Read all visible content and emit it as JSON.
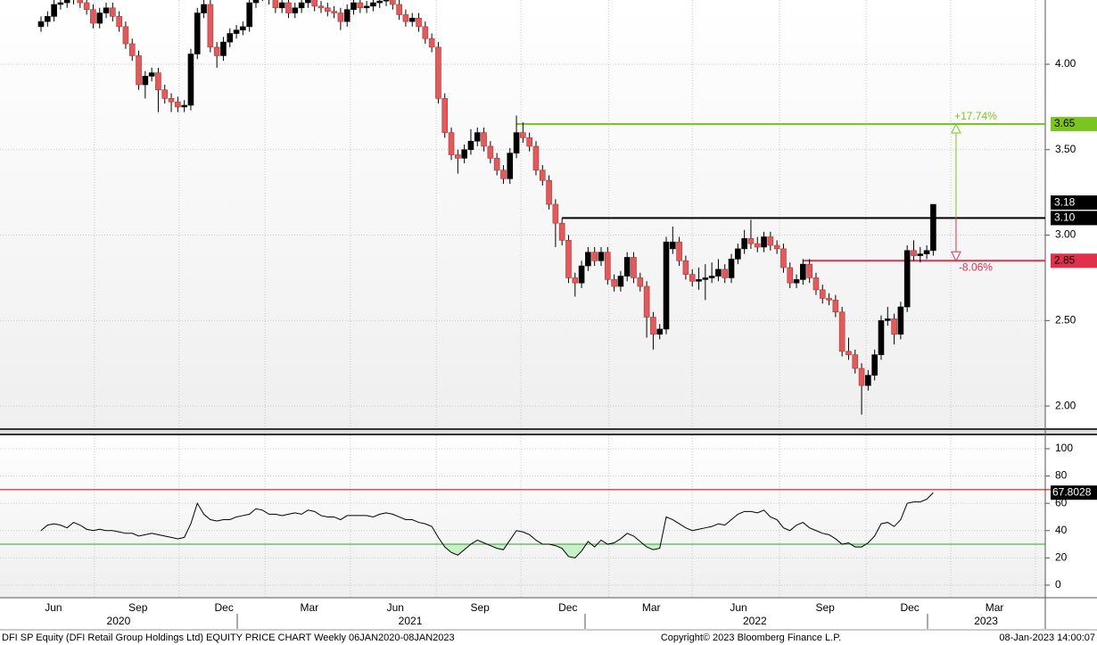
{
  "chart_data": {
    "type": "candlestick",
    "xlim": [
      -6.3,
      154.2
    ],
    "xticks": [
      {
        "value": 1.9,
        "label": "Jun"
      },
      {
        "value": 14.9,
        "label": "Sep"
      },
      {
        "value": 28.1,
        "label": "Dec"
      },
      {
        "value": 41.2,
        "label": "Mar"
      },
      {
        "value": 54.4,
        "label": "Jun"
      },
      {
        "value": 67.4,
        "label": "Sep"
      },
      {
        "value": 80.9,
        "label": "Dec"
      },
      {
        "value": 93.7,
        "label": "Mar"
      },
      {
        "value": 107.1,
        "label": "Jun"
      },
      {
        "value": 120.4,
        "label": "Sep"
      },
      {
        "value": 133.4,
        "label": "Dec"
      },
      {
        "value": 146.4,
        "label": "Mar"
      }
    ],
    "year_ticks": [
      {
        "value": 11.9,
        "label": "2020"
      },
      {
        "value": 56.7,
        "label": "2021"
      },
      {
        "value": 109.6,
        "label": "2022"
      },
      {
        "value": 145.1,
        "label": "2023"
      }
    ],
    "grid": true,
    "price": {
      "ylim": [
        1.87,
        4.376
      ],
      "yticks": [
        {
          "value": 2,
          "label": "2.00"
        },
        {
          "value": 2.5,
          "label": "2.50"
        },
        {
          "value": 3,
          "label": "3.00"
        },
        {
          "value": 3.5,
          "label": "3.50"
        },
        {
          "value": 4,
          "label": "4.00"
        }
      ],
      "up_color": "#000000",
      "down_color": "#e05c5c",
      "candles": [
        [
          4.22,
          4.28,
          4.19,
          4.25
        ],
        [
          4.25,
          4.31,
          4.22,
          4.28
        ],
        [
          4.28,
          4.38,
          4.25,
          4.35
        ],
        [
          4.35,
          4.39,
          4.32,
          4.36
        ],
        [
          4.36,
          4.43,
          4.33,
          4.4
        ],
        [
          4.4,
          4.43,
          4.35,
          4.38
        ],
        [
          4.38,
          4.41,
          4.33,
          4.36
        ],
        [
          4.36,
          4.39,
          4.29,
          4.32
        ],
        [
          4.32,
          4.35,
          4.21,
          4.24
        ],
        [
          4.24,
          4.33,
          4.21,
          4.3
        ],
        [
          4.3,
          4.36,
          4.27,
          4.33
        ],
        [
          4.33,
          4.36,
          4.25,
          4.28
        ],
        [
          4.28,
          4.31,
          4.19,
          4.22
        ],
        [
          4.22,
          4.25,
          4.09,
          4.12
        ],
        [
          4.12,
          4.15,
          4.02,
          4.05
        ],
        [
          4.05,
          4.08,
          3.85,
          3.88
        ],
        [
          3.88,
          3.96,
          3.8,
          3.93
        ],
        [
          3.93,
          3.98,
          3.9,
          3.95
        ],
        [
          3.95,
          3.98,
          3.72,
          3.85
        ],
        [
          3.85,
          3.88,
          3.77,
          3.8
        ],
        [
          3.8,
          3.83,
          3.72,
          3.78
        ],
        [
          3.78,
          3.81,
          3.72,
          3.75
        ],
        [
          3.75,
          3.79,
          3.72,
          3.76
        ],
        [
          3.76,
          4.09,
          3.73,
          4.06
        ],
        [
          4.06,
          4.33,
          4.03,
          4.3
        ],
        [
          4.3,
          4.38,
          4.27,
          4.35
        ],
        [
          4.35,
          4.38,
          4.07,
          4.1
        ],
        [
          4.1,
          4.13,
          3.98,
          4.05
        ],
        [
          4.05,
          4.16,
          4.02,
          4.13
        ],
        [
          4.13,
          4.21,
          4.1,
          4.18
        ],
        [
          4.18,
          4.23,
          4.15,
          4.2
        ],
        [
          4.2,
          4.25,
          4.17,
          4.22
        ],
        [
          4.22,
          4.39,
          4.19,
          4.36
        ],
        [
          4.36,
          4.43,
          4.33,
          4.4
        ],
        [
          4.4,
          4.45,
          4.37,
          4.42
        ],
        [
          4.42,
          4.45,
          4.35,
          4.38
        ],
        [
          4.38,
          4.41,
          4.3,
          4.33
        ],
        [
          4.33,
          4.39,
          4.3,
          4.36
        ],
        [
          4.36,
          4.39,
          4.27,
          4.3
        ],
        [
          4.3,
          4.36,
          4.27,
          4.33
        ],
        [
          4.33,
          4.39,
          4.3,
          4.36
        ],
        [
          4.36,
          4.41,
          4.33,
          4.38
        ],
        [
          4.38,
          4.41,
          4.31,
          4.34
        ],
        [
          4.34,
          4.37,
          4.3,
          4.33
        ],
        [
          4.33,
          4.36,
          4.28,
          4.31
        ],
        [
          4.31,
          4.34,
          4.27,
          4.3
        ],
        [
          4.3,
          4.33,
          4.2,
          4.25
        ],
        [
          4.25,
          4.35,
          4.22,
          4.32
        ],
        [
          4.32,
          4.39,
          4.29,
          4.36
        ],
        [
          4.36,
          4.39,
          4.3,
          4.33
        ],
        [
          4.33,
          4.37,
          4.3,
          4.34
        ],
        [
          4.34,
          4.39,
          4.31,
          4.36
        ],
        [
          4.36,
          4.4,
          4.33,
          4.37
        ],
        [
          4.37,
          4.41,
          4.34,
          4.38
        ],
        [
          4.38,
          4.41,
          4.32,
          4.35
        ],
        [
          4.35,
          4.38,
          4.26,
          4.29
        ],
        [
          4.29,
          4.32,
          4.22,
          4.25
        ],
        [
          4.25,
          4.3,
          4.22,
          4.27
        ],
        [
          4.27,
          4.3,
          4.19,
          4.22
        ],
        [
          4.22,
          4.25,
          4.12,
          4.15
        ],
        [
          4.15,
          4.18,
          4.07,
          4.1
        ],
        [
          4.1,
          4.13,
          3.77,
          3.8
        ],
        [
          3.8,
          3.83,
          3.57,
          3.6
        ],
        [
          3.6,
          3.63,
          3.44,
          3.47
        ],
        [
          3.47,
          3.5,
          3.36,
          3.45
        ],
        [
          3.45,
          3.53,
          3.42,
          3.5
        ],
        [
          3.5,
          3.62,
          3.47,
          3.55
        ],
        [
          3.55,
          3.63,
          3.52,
          3.6
        ],
        [
          3.6,
          3.63,
          3.49,
          3.52
        ],
        [
          3.52,
          3.55,
          3.42,
          3.45
        ],
        [
          3.45,
          3.48,
          3.35,
          3.38
        ],
        [
          3.38,
          3.41,
          3.3,
          3.33
        ],
        [
          3.33,
          3.51,
          3.3,
          3.48
        ],
        [
          3.48,
          3.7,
          3.45,
          3.6
        ],
        [
          3.6,
          3.66,
          3.54,
          3.57
        ],
        [
          3.57,
          3.6,
          3.49,
          3.52
        ],
        [
          3.52,
          3.55,
          3.35,
          3.38
        ],
        [
          3.38,
          3.41,
          3.29,
          3.32
        ],
        [
          3.32,
          3.35,
          3.15,
          3.18
        ],
        [
          3.18,
          3.21,
          2.93,
          3.07
        ],
        [
          3.07,
          3.1,
          2.94,
          2.97
        ],
        [
          2.97,
          3.0,
          2.72,
          2.75
        ],
        [
          2.75,
          2.78,
          2.64,
          2.72
        ],
        [
          2.72,
          2.85,
          2.69,
          2.82
        ],
        [
          2.82,
          2.93,
          2.79,
          2.9
        ],
        [
          2.9,
          2.93,
          2.82,
          2.85
        ],
        [
          2.85,
          2.93,
          2.82,
          2.9
        ],
        [
          2.9,
          2.93,
          2.71,
          2.74
        ],
        [
          2.74,
          2.77,
          2.67,
          2.7
        ],
        [
          2.7,
          2.79,
          2.67,
          2.76
        ],
        [
          2.76,
          2.9,
          2.73,
          2.87
        ],
        [
          2.87,
          2.9,
          2.72,
          2.75
        ],
        [
          2.75,
          2.78,
          2.67,
          2.7
        ],
        [
          2.7,
          2.73,
          2.4,
          2.52
        ],
        [
          2.52,
          2.55,
          2.33,
          2.42
        ],
        [
          2.42,
          2.48,
          2.39,
          2.45
        ],
        [
          2.45,
          2.99,
          2.42,
          2.96
        ],
        [
          2.92,
          3.05,
          2.89,
          2.96
        ],
        [
          2.96,
          2.99,
          2.82,
          2.85
        ],
        [
          2.85,
          2.88,
          2.74,
          2.77
        ],
        [
          2.77,
          2.8,
          2.7,
          2.73
        ],
        [
          2.73,
          2.81,
          2.68,
          2.74
        ],
        [
          2.74,
          2.83,
          2.62,
          2.75
        ],
        [
          2.75,
          2.84,
          2.72,
          2.76
        ],
        [
          2.76,
          2.86,
          2.73,
          2.8
        ],
        [
          2.8,
          2.83,
          2.72,
          2.75
        ],
        [
          2.75,
          2.89,
          2.72,
          2.86
        ],
        [
          2.86,
          2.95,
          2.83,
          2.92
        ],
        [
          2.92,
          3.03,
          2.89,
          2.98
        ],
        [
          2.98,
          3.09,
          2.92,
          2.95
        ],
        [
          2.95,
          2.99,
          2.9,
          2.93
        ],
        [
          2.93,
          3.02,
          2.9,
          2.99
        ],
        [
          2.99,
          3.02,
          2.91,
          2.94
        ],
        [
          2.94,
          2.97,
          2.89,
          2.92
        ],
        [
          2.92,
          2.95,
          2.78,
          2.81
        ],
        [
          2.81,
          2.84,
          2.69,
          2.72
        ],
        [
          2.72,
          2.77,
          2.69,
          2.74
        ],
        [
          2.74,
          2.86,
          2.71,
          2.83
        ],
        [
          2.83,
          2.86,
          2.72,
          2.75
        ],
        [
          2.75,
          2.78,
          2.65,
          2.68
        ],
        [
          2.68,
          2.71,
          2.6,
          2.63
        ],
        [
          2.63,
          2.66,
          2.59,
          2.62
        ],
        [
          2.62,
          2.65,
          2.52,
          2.55
        ],
        [
          2.55,
          2.58,
          2.29,
          2.32
        ],
        [
          2.32,
          2.4,
          2.27,
          2.3
        ],
        [
          2.3,
          2.33,
          2.19,
          2.22
        ],
        [
          2.22,
          2.25,
          1.95,
          2.12
        ],
        [
          2.12,
          2.21,
          2.09,
          2.18
        ],
        [
          2.18,
          2.33,
          2.15,
          2.3
        ],
        [
          2.3,
          2.53,
          2.27,
          2.5
        ],
        [
          2.5,
          2.58,
          2.47,
          2.51
        ],
        [
          2.51,
          2.54,
          2.36,
          2.42
        ],
        [
          2.42,
          2.61,
          2.39,
          2.58
        ],
        [
          2.58,
          2.94,
          2.55,
          2.91
        ],
        [
          2.91,
          2.97,
          2.85,
          2.88
        ],
        [
          2.88,
          2.93,
          2.84,
          2.89
        ],
        [
          2.89,
          2.94,
          2.86,
          2.91
        ],
        [
          2.91,
          3.18,
          2.88,
          3.18
        ]
      ],
      "levels": [
        {
          "value": 3.65,
          "label": "3.65",
          "color": "#7cc520",
          "start_index": 73
        },
        {
          "value": 3.1,
          "label": "3.10",
          "color": "#000000",
          "start_index": 80
        },
        {
          "value": 2.85,
          "label": "2.85",
          "color": "#e0304a",
          "start_index": 117
        }
      ],
      "arrow_index": 140.5,
      "annotations": [
        "+17.74%",
        "-8.06%"
      ]
    },
    "rsi": {
      "ylim": [
        -9.2,
        109.8
      ],
      "yticks": [
        0,
        20,
        40,
        60,
        80,
        100
      ],
      "color": "#000000",
      "levels": [
        {
          "value": 70,
          "color": "#c00000"
        },
        {
          "value": 30,
          "color": "#22aa22"
        }
      ],
      "fill_color": "#c8f0c8",
      "values": [
        40,
        44,
        45,
        44,
        42,
        46,
        44,
        41,
        40,
        41,
        40,
        40,
        39,
        38,
        38,
        36,
        37,
        38,
        37,
        36,
        35,
        34,
        35,
        45,
        60,
        52,
        48,
        47,
        48,
        48,
        50,
        51,
        52,
        56,
        55,
        52,
        52,
        51,
        52,
        53,
        52,
        55,
        54,
        51,
        50,
        50,
        48,
        51,
        51,
        51,
        51,
        50,
        52,
        53,
        52,
        50,
        48,
        48,
        46,
        45,
        43,
        35,
        28,
        24,
        22,
        26,
        30,
        33,
        31,
        29,
        27,
        26,
        33,
        40,
        39,
        37,
        33,
        30,
        30,
        29,
        27,
        21,
        20,
        25,
        32,
        28,
        33,
        30,
        31,
        34,
        38,
        36,
        32,
        28,
        26,
        27,
        50,
        48,
        45,
        42,
        40,
        41,
        42,
        43,
        45,
        44,
        48,
        52,
        54,
        54,
        53,
        55,
        50,
        48,
        42,
        40,
        44,
        46,
        42,
        40,
        38,
        37,
        34,
        30,
        31,
        28,
        28,
        31,
        36,
        45,
        46,
        43,
        48,
        60,
        61,
        61,
        63,
        67.8028
      ]
    },
    "footer": {
      "left": "DFI SP Equity (DFI Retail Group Holdings Ltd) EQUITY PRICE CHART  Weekly 06JAN2020-08JAN2023",
      "center": "Copyright© 2023 Bloomberg Finance L.P.",
      "right": "08-Jan-2023 14:00:07"
    }
  }
}
